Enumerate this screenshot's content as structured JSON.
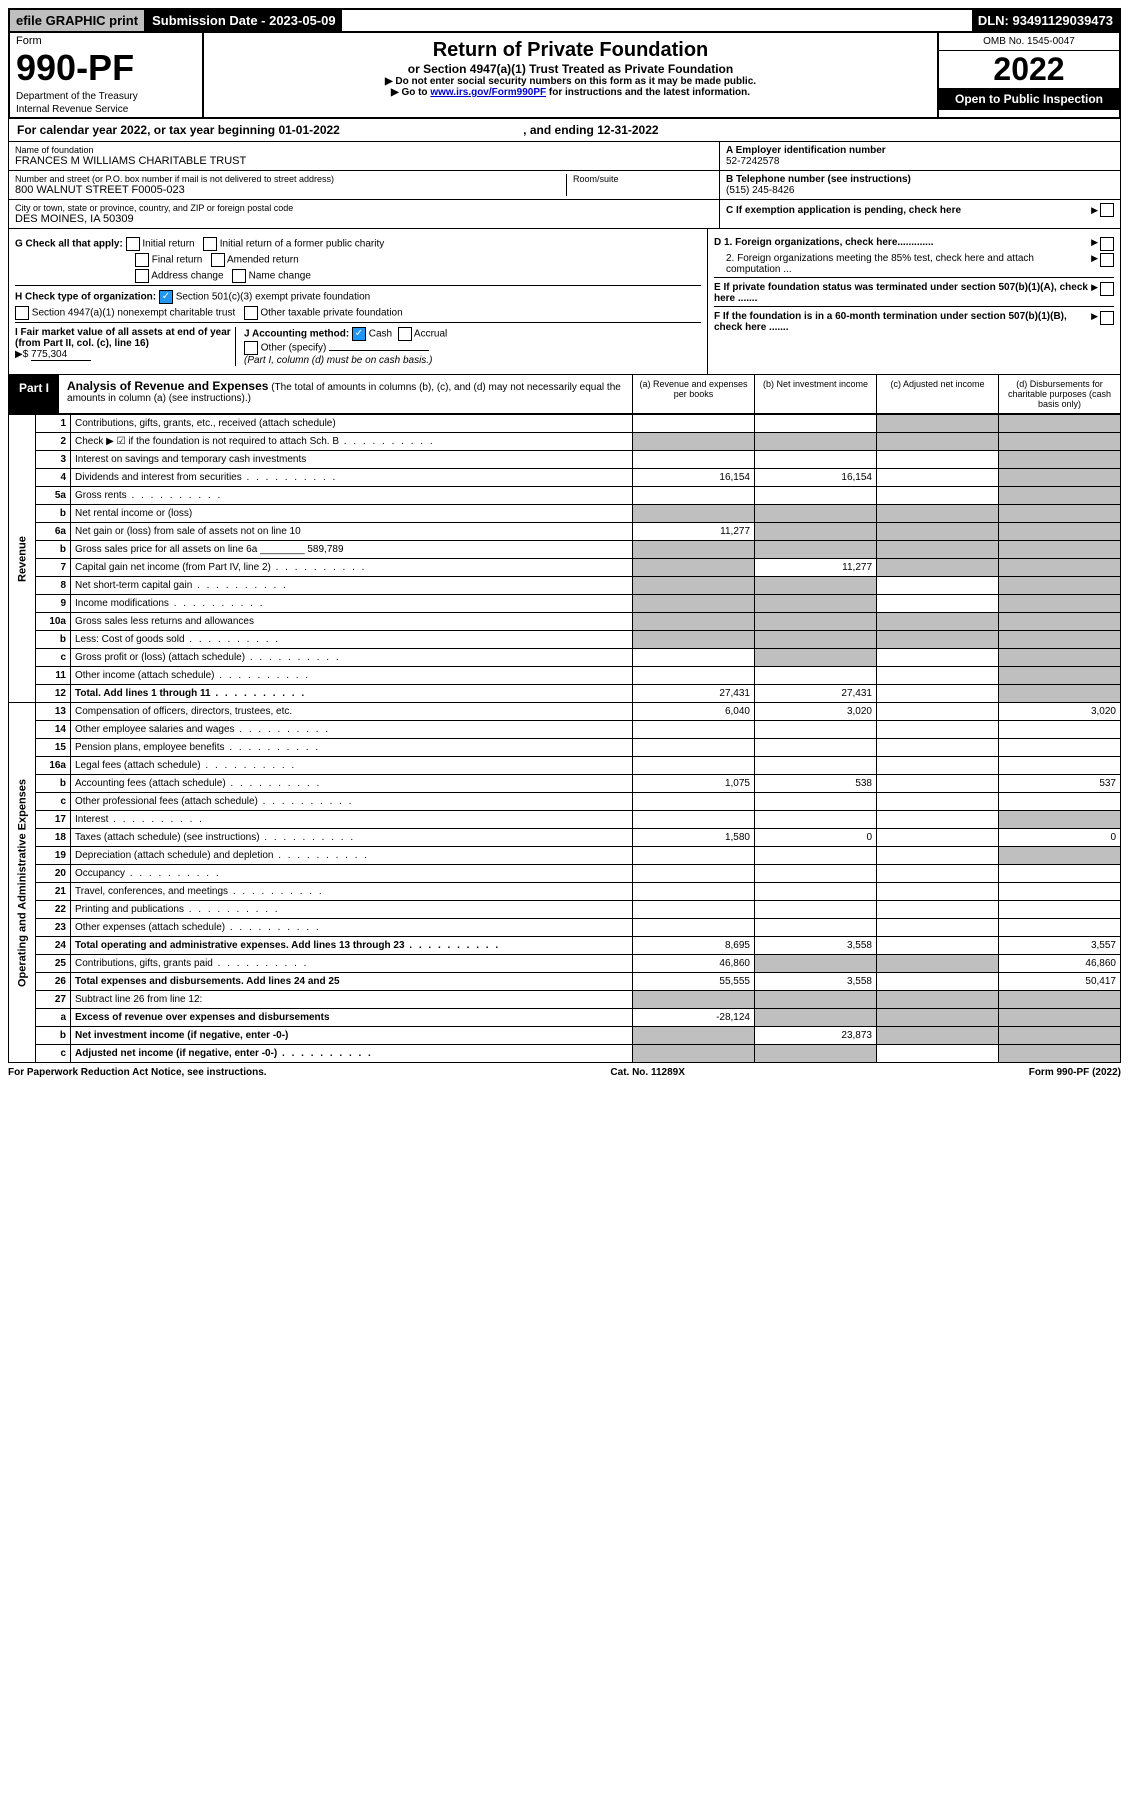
{
  "topbar": {
    "efile": "efile GRAPHIC print",
    "submission": "Submission Date - 2023-05-09",
    "dln": "DLN: 93491129039473"
  },
  "header": {
    "form_word": "Form",
    "form_num": "990-PF",
    "dept": "Department of the Treasury",
    "irs": "Internal Revenue Service",
    "title": "Return of Private Foundation",
    "subtitle": "or Section 4947(a)(1) Trust Treated as Private Foundation",
    "note1": "▶ Do not enter social security numbers on this form as it may be made public.",
    "note2_pre": "▶ Go to ",
    "note2_link": "www.irs.gov/Form990PF",
    "note2_post": " for instructions and the latest information.",
    "omb": "OMB No. 1545-0047",
    "year": "2022",
    "open": "Open to Public Inspection"
  },
  "calendar": {
    "text_pre": "For calendar year 2022, or tax year beginning ",
    "begin": "01-01-2022",
    "text_mid": " , and ending ",
    "end": "12-31-2022"
  },
  "entity": {
    "name_label": "Name of foundation",
    "name": "FRANCES M WILLIAMS CHARITABLE TRUST",
    "street_label": "Number and street (or P.O. box number if mail is not delivered to street address)",
    "street": "800 WALNUT STREET F0005-023",
    "room_label": "Room/suite",
    "city_label": "City or town, state or province, country, and ZIP or foreign postal code",
    "city": "DES MOINES, IA  50309",
    "ein_label": "A Employer identification number",
    "ein": "52-7242578",
    "tel_label": "B Telephone number (see instructions)",
    "tel": "(515) 245-8426",
    "c_label": "C If exemption application is pending, check here"
  },
  "checks": {
    "g_label": "G Check all that apply:",
    "g_opts": [
      "Initial return",
      "Initial return of a former public charity",
      "Final return",
      "Amended return",
      "Address change",
      "Name change"
    ],
    "h_label": "H Check type of organization:",
    "h1": "Section 501(c)(3) exempt private foundation",
    "h2": "Section 4947(a)(1) nonexempt charitable trust",
    "h3": "Other taxable private foundation",
    "i_label": "I Fair market value of all assets at end of year (from Part II, col. (c), line 16)",
    "i_val": "775,304",
    "j_label": "J Accounting method:",
    "j_cash": "Cash",
    "j_accrual": "Accrual",
    "j_other": "Other (specify)",
    "j_note": "(Part I, column (d) must be on cash basis.)",
    "d1": "D 1. Foreign organizations, check here.............",
    "d2": "2. Foreign organizations meeting the 85% test, check here and attach computation ...",
    "e": "E If private foundation status was terminated under section 507(b)(1)(A), check here .......",
    "f": "F If the foundation is in a 60-month termination under section 507(b)(1)(B), check here .......",
    "i_prefix": "▶$ "
  },
  "part1": {
    "label": "Part I",
    "title": "Analysis of Revenue and Expenses",
    "title_note": "(The total of amounts in columns (b), (c), and (d) may not necessarily equal the amounts in column (a) (see instructions).)",
    "col_a": "(a) Revenue and expenses per books",
    "col_b": "(b) Net investment income",
    "col_c": "(c) Adjusted net income",
    "col_d": "(d) Disbursements for charitable purposes (cash basis only)"
  },
  "sections": {
    "revenue": "Revenue",
    "expenses": "Operating and Administrative Expenses"
  },
  "lines": [
    {
      "n": "1",
      "d": "Contributions, gifts, grants, etc., received (attach schedule)",
      "a": "",
      "b": "",
      "c": "g",
      "dd": "g"
    },
    {
      "n": "2",
      "d": "Check ▶ ☑ if the foundation is not required to attach Sch. B",
      "dots": true,
      "a": "g",
      "b": "g",
      "c": "g",
      "dd": "g"
    },
    {
      "n": "3",
      "d": "Interest on savings and temporary cash investments",
      "a": "",
      "b": "",
      "c": "",
      "dd": "g"
    },
    {
      "n": "4",
      "d": "Dividends and interest from securities",
      "dots": true,
      "a": "16,154",
      "b": "16,154",
      "c": "",
      "dd": "g"
    },
    {
      "n": "5a",
      "d": "Gross rents",
      "dots": true,
      "a": "",
      "b": "",
      "c": "",
      "dd": "g"
    },
    {
      "n": "b",
      "d": "Net rental income or (loss)",
      "a": "g",
      "b": "g",
      "c": "g",
      "dd": "g"
    },
    {
      "n": "6a",
      "d": "Net gain or (loss) from sale of assets not on line 10",
      "a": "11,277",
      "b": "g",
      "c": "g",
      "dd": "g"
    },
    {
      "n": "b",
      "d": "Gross sales price for all assets on line 6a ________ 589,789",
      "a": "g",
      "b": "g",
      "c": "g",
      "dd": "g"
    },
    {
      "n": "7",
      "d": "Capital gain net income (from Part IV, line 2)",
      "dots": true,
      "a": "g",
      "b": "11,277",
      "c": "g",
      "dd": "g"
    },
    {
      "n": "8",
      "d": "Net short-term capital gain",
      "dots": true,
      "a": "g",
      "b": "g",
      "c": "",
      "dd": "g"
    },
    {
      "n": "9",
      "d": "Income modifications",
      "dots": true,
      "a": "g",
      "b": "g",
      "c": "",
      "dd": "g"
    },
    {
      "n": "10a",
      "d": "Gross sales less returns and allowances",
      "a": "g",
      "b": "g",
      "c": "g",
      "dd": "g"
    },
    {
      "n": "b",
      "d": "Less: Cost of goods sold",
      "dots": true,
      "a": "g",
      "b": "g",
      "c": "g",
      "dd": "g"
    },
    {
      "n": "c",
      "d": "Gross profit or (loss) (attach schedule)",
      "dots": true,
      "a": "",
      "b": "g",
      "c": "",
      "dd": "g"
    },
    {
      "n": "11",
      "d": "Other income (attach schedule)",
      "dots": true,
      "a": "",
      "b": "",
      "c": "",
      "dd": "g"
    },
    {
      "n": "12",
      "d": "Total. Add lines 1 through 11",
      "dots": true,
      "bold": true,
      "a": "27,431",
      "b": "27,431",
      "c": "",
      "dd": "g"
    },
    {
      "n": "13",
      "d": "Compensation of officers, directors, trustees, etc.",
      "a": "6,040",
      "b": "3,020",
      "c": "",
      "dd": "3,020"
    },
    {
      "n": "14",
      "d": "Other employee salaries and wages",
      "dots": true,
      "a": "",
      "b": "",
      "c": "",
      "dd": ""
    },
    {
      "n": "15",
      "d": "Pension plans, employee benefits",
      "dots": true,
      "a": "",
      "b": "",
      "c": "",
      "dd": ""
    },
    {
      "n": "16a",
      "d": "Legal fees (attach schedule)",
      "dots": true,
      "a": "",
      "b": "",
      "c": "",
      "dd": ""
    },
    {
      "n": "b",
      "d": "Accounting fees (attach schedule)",
      "dots": true,
      "a": "1,075",
      "b": "538",
      "c": "",
      "dd": "537"
    },
    {
      "n": "c",
      "d": "Other professional fees (attach schedule)",
      "dots": true,
      "a": "",
      "b": "",
      "c": "",
      "dd": ""
    },
    {
      "n": "17",
      "d": "Interest",
      "dots": true,
      "a": "",
      "b": "",
      "c": "",
      "dd": "g"
    },
    {
      "n": "18",
      "d": "Taxes (attach schedule) (see instructions)",
      "dots": true,
      "a": "1,580",
      "b": "0",
      "c": "",
      "dd": "0"
    },
    {
      "n": "19",
      "d": "Depreciation (attach schedule) and depletion",
      "dots": true,
      "a": "",
      "b": "",
      "c": "",
      "dd": "g"
    },
    {
      "n": "20",
      "d": "Occupancy",
      "dots": true,
      "a": "",
      "b": "",
      "c": "",
      "dd": ""
    },
    {
      "n": "21",
      "d": "Travel, conferences, and meetings",
      "dots": true,
      "a": "",
      "b": "",
      "c": "",
      "dd": ""
    },
    {
      "n": "22",
      "d": "Printing and publications",
      "dots": true,
      "a": "",
      "b": "",
      "c": "",
      "dd": ""
    },
    {
      "n": "23",
      "d": "Other expenses (attach schedule)",
      "dots": true,
      "a": "",
      "b": "",
      "c": "",
      "dd": ""
    },
    {
      "n": "24",
      "d": "Total operating and administrative expenses. Add lines 13 through 23",
      "dots": true,
      "bold": true,
      "a": "8,695",
      "b": "3,558",
      "c": "",
      "dd": "3,557"
    },
    {
      "n": "25",
      "d": "Contributions, gifts, grants paid",
      "dots": true,
      "a": "46,860",
      "b": "g",
      "c": "g",
      "dd": "46,860"
    },
    {
      "n": "26",
      "d": "Total expenses and disbursements. Add lines 24 and 25",
      "bold": true,
      "a": "55,555",
      "b": "3,558",
      "c": "",
      "dd": "50,417"
    },
    {
      "n": "27",
      "d": "Subtract line 26 from line 12:",
      "a": "g",
      "b": "g",
      "c": "g",
      "dd": "g"
    },
    {
      "n": "a",
      "d": "Excess of revenue over expenses and disbursements",
      "bold": true,
      "a": "-28,124",
      "b": "g",
      "c": "g",
      "dd": "g"
    },
    {
      "n": "b",
      "d": "Net investment income (if negative, enter -0-)",
      "bold": true,
      "a": "g",
      "b": "23,873",
      "c": "g",
      "dd": "g"
    },
    {
      "n": "c",
      "d": "Adjusted net income (if negative, enter -0-)",
      "dots": true,
      "bold": true,
      "a": "g",
      "b": "g",
      "c": "",
      "dd": "g"
    }
  ],
  "footer": {
    "left": "For Paperwork Reduction Act Notice, see instructions.",
    "mid": "Cat. No. 11289X",
    "right": "Form 990-PF (2022)"
  },
  "colors": {
    "grey": "#bfbfbf",
    "black": "#000000",
    "link": "#0000cc",
    "check": "#2196f3"
  }
}
